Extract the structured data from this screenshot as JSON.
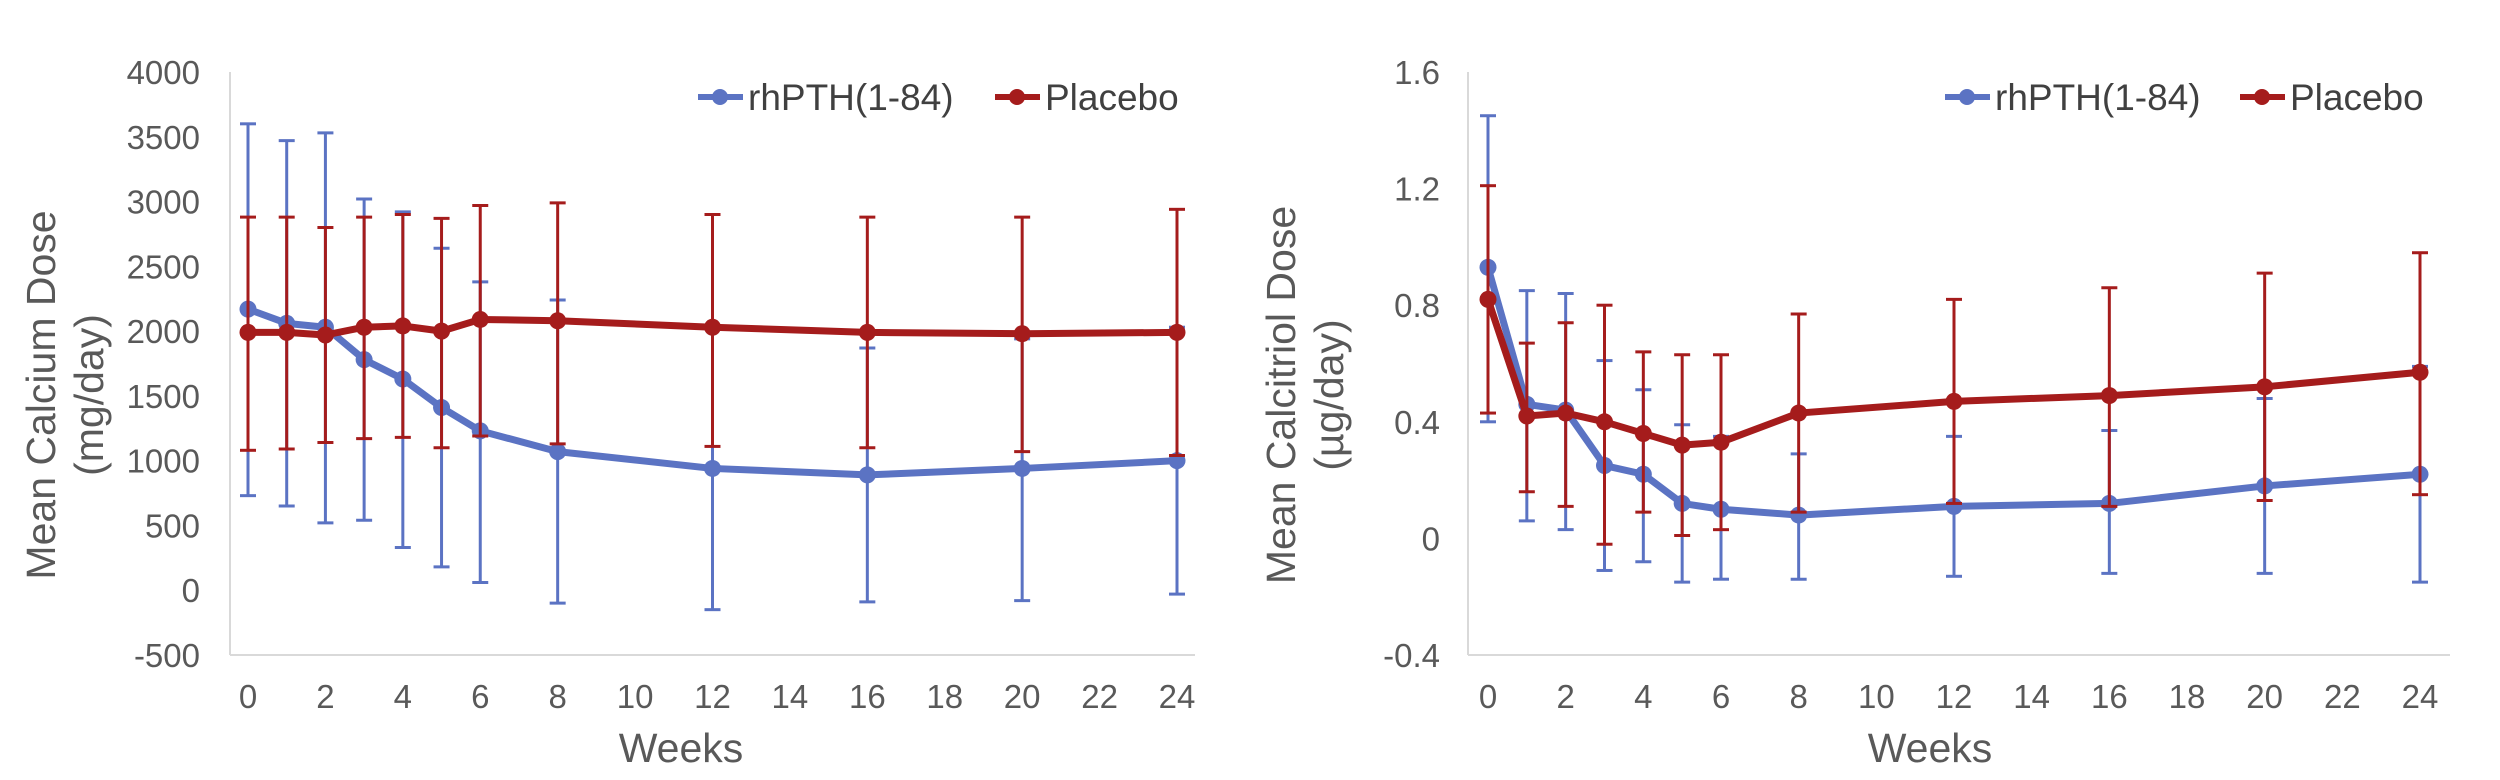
{
  "colors": {
    "series_blue": "#5B73C3",
    "series_red": "#A51C1C",
    "axis": "#D9D9D9",
    "text": "#595959"
  },
  "chart_data": [
    {
      "type": "line",
      "xlabel": "Weeks",
      "ylabel_line1": "Mean Calcium Dose",
      "ylabel_line2": "(mg/day)",
      "xlim": [
        0,
        24
      ],
      "ylim": [
        -500,
        4000
      ],
      "xticks": [
        "0",
        "2",
        "4",
        "6",
        "8",
        "10",
        "12",
        "14",
        "16",
        "18",
        "20",
        "22",
        "24"
      ],
      "yticks": [
        "4000",
        "3500",
        "3000",
        "2500",
        "2000",
        "1500",
        "1000",
        "500",
        "0",
        "-500"
      ],
      "ytick_values": [
        4000,
        3500,
        3000,
        2500,
        2000,
        1500,
        1000,
        500,
        0,
        -500
      ],
      "legend_position": "top-right",
      "grid": false,
      "series": [
        {
          "name": "rhPTH(1-84)",
          "color": "#5B73C3",
          "x": [
            0,
            1,
            2,
            3,
            4,
            5,
            6,
            8,
            12,
            16,
            20,
            24
          ],
          "y": [
            2170,
            2060,
            2030,
            1780,
            1630,
            1410,
            1230,
            1070,
            940,
            890,
            940,
            1000
          ],
          "err_low": [
            730,
            650,
            520,
            540,
            330,
            180,
            60,
            -100,
            -150,
            -90,
            -80,
            -30
          ],
          "err_high": [
            3600,
            3470,
            3530,
            3020,
            2920,
            2640,
            2380,
            2240,
            2030,
            1870,
            1940,
            2030
          ]
        },
        {
          "name": "Placebo",
          "color": "#A51C1C",
          "x": [
            0,
            1,
            2,
            3,
            4,
            5,
            6,
            8,
            12,
            16,
            20,
            24
          ],
          "y": [
            1990,
            1990,
            1970,
            2030,
            2040,
            2000,
            2090,
            2080,
            2030,
            1990,
            1980,
            1990
          ],
          "err_low": [
            1080,
            1090,
            1140,
            1170,
            1180,
            1100,
            1190,
            1130,
            1110,
            1100,
            1070,
            1040
          ],
          "err_high": [
            2880,
            2880,
            2800,
            2880,
            2900,
            2870,
            2970,
            2990,
            2900,
            2880,
            2880,
            2940
          ]
        }
      ]
    },
    {
      "type": "line",
      "xlabel": "Weeks",
      "ylabel_line1": "Mean Calcitriol Dose",
      "ylabel_line2": "(µg/day)",
      "xlim": [
        0,
        24
      ],
      "ylim": [
        -0.4,
        1.6
      ],
      "xticks": [
        "0",
        "2",
        "4",
        "6",
        "8",
        "10",
        "12",
        "14",
        "16",
        "18",
        "20",
        "22",
        "24"
      ],
      "yticks": [
        "1.6",
        "1.2",
        "0.8",
        "0.4",
        "0",
        "-0.4"
      ],
      "ytick_values": [
        1.6,
        1.2,
        0.8,
        0.4,
        0,
        -0.4
      ],
      "legend_position": "top-right",
      "grid": false,
      "series": [
        {
          "name": "rhPTH(1-84)",
          "color": "#5B73C3",
          "x": [
            0,
            1,
            2,
            3,
            4,
            5,
            6,
            8,
            12,
            16,
            20,
            24
          ],
          "y": [
            0.93,
            0.46,
            0.44,
            0.25,
            0.22,
            0.12,
            0.1,
            0.08,
            0.11,
            0.12,
            0.18,
            0.22
          ],
          "err_low": [
            0.4,
            0.06,
            0.03,
            -0.11,
            -0.08,
            -0.15,
            -0.14,
            -0.14,
            -0.13,
            -0.12,
            -0.12,
            -0.15
          ],
          "err_high": [
            1.45,
            0.85,
            0.84,
            0.61,
            0.51,
            0.39,
            0.35,
            0.29,
            0.35,
            0.37,
            0.48,
            0.59
          ]
        },
        {
          "name": "Placebo",
          "color": "#A51C1C",
          "x": [
            0,
            1,
            2,
            3,
            4,
            5,
            6,
            8,
            12,
            16,
            20,
            24
          ],
          "y": [
            0.82,
            0.42,
            0.43,
            0.4,
            0.36,
            0.32,
            0.33,
            0.43,
            0.47,
            0.49,
            0.52,
            0.57
          ],
          "err_low": [
            0.43,
            0.16,
            0.11,
            -0.02,
            0.09,
            0.01,
            0.03,
            0.09,
            0.12,
            0.11,
            0.13,
            0.15
          ],
          "err_high": [
            1.21,
            0.67,
            0.74,
            0.8,
            0.64,
            0.63,
            0.63,
            0.77,
            0.82,
            0.86,
            0.91,
            0.98
          ]
        }
      ]
    }
  ]
}
